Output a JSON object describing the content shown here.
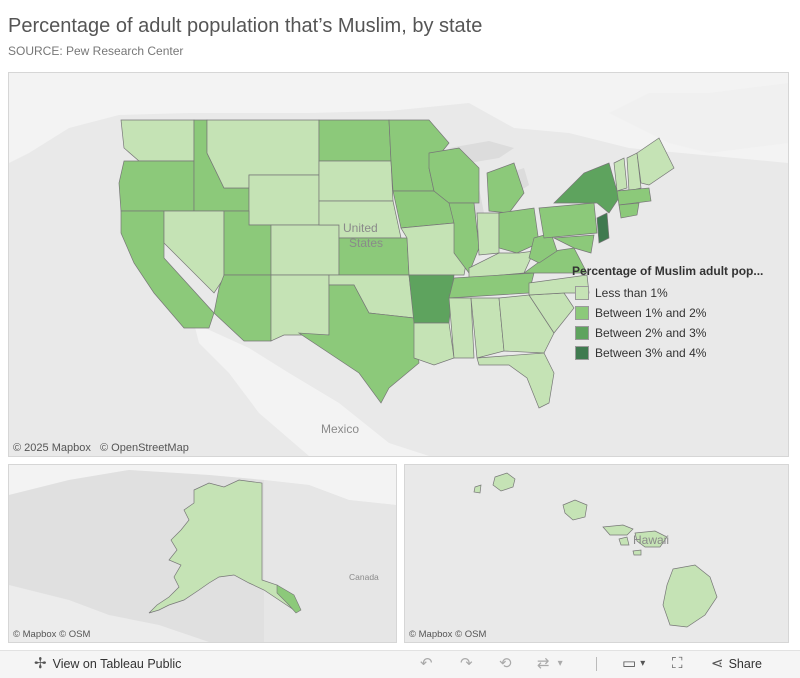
{
  "header": {
    "title": "Percentage of adult population that’s Muslim, by state",
    "source": "SOURCE: Pew Research Center"
  },
  "main_map": {
    "attribution_mapbox": "© 2025 Mapbox",
    "attribution_osm": "© OpenStreetMap",
    "label_country_us_1": "United",
    "label_country_us_2": "States",
    "label_mexico": "Mexico"
  },
  "alaska_map": {
    "attribution": "© Mapbox  © OSM",
    "label_canada": "Canada"
  },
  "hawaii_map": {
    "attribution": "© Mapbox  © OSM",
    "label_hawaii": "Hawaii"
  },
  "legend": {
    "title": "Percentage of Muslim adult pop...",
    "items": [
      {
        "label": "Less than 1%",
        "color": "#c5e3b5"
      },
      {
        "label": "Between 1% and 2%",
        "color": "#8cc97a"
      },
      {
        "label": "Between 2% and 3%",
        "color": "#5ea35e"
      },
      {
        "label": "Between 3% and 4%",
        "color": "#3f7a4f"
      }
    ]
  },
  "toolbar": {
    "view_label": "View on Tableau Public",
    "share_label": "Share"
  }
}
